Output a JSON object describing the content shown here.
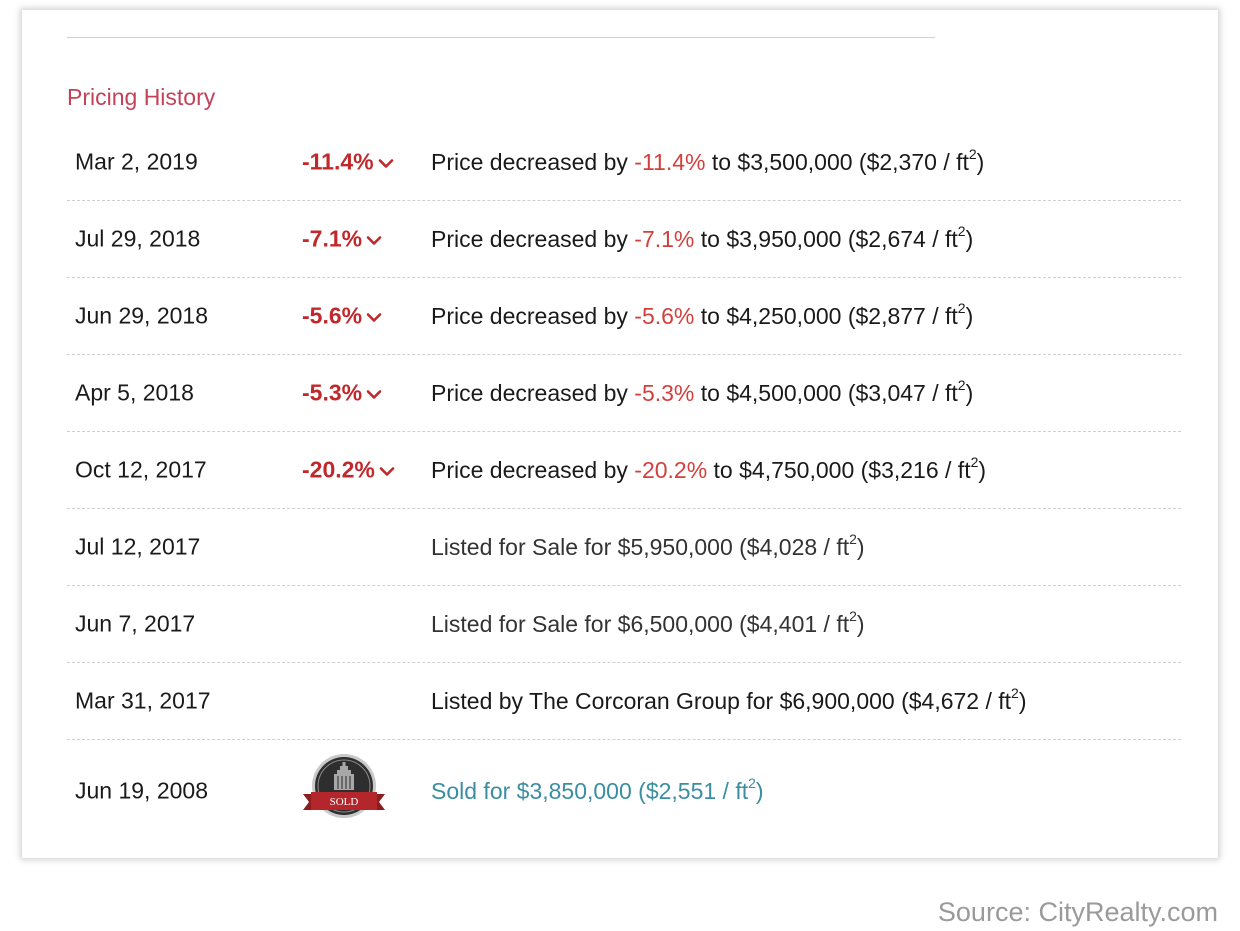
{
  "section": {
    "title": "Pricing History"
  },
  "rows": [
    {
      "date": "Mar 2, 2019",
      "change": "-11.4%",
      "desc_prefix": "Price decreased by ",
      "desc_pct": "-11.4%",
      "desc_suffix": " to $3,500,000 ($2,370 / ft",
      "unit_sup": "2",
      "desc_close": ")"
    },
    {
      "date": "Jul 29, 2018",
      "change": "-7.1%",
      "desc_prefix": "Price decreased by ",
      "desc_pct": "-7.1%",
      "desc_suffix": " to $3,950,000 ($2,674 / ft",
      "unit_sup": "2",
      "desc_close": ")"
    },
    {
      "date": "Jun 29, 2018",
      "change": "-5.6%",
      "desc_prefix": "Price decreased by ",
      "desc_pct": "-5.6%",
      "desc_suffix": " to $4,250,000 ($2,877 / ft",
      "unit_sup": "2",
      "desc_close": ")"
    },
    {
      "date": "Apr 5, 2018",
      "change": "-5.3%",
      "desc_prefix": "Price decreased by ",
      "desc_pct": "-5.3%",
      "desc_suffix": " to $4,500,000 ($3,047 / ft",
      "unit_sup": "2",
      "desc_close": ")"
    },
    {
      "date": "Oct 12, 2017",
      "change": "-20.2%",
      "desc_prefix": "Price decreased by ",
      "desc_pct": "-20.2%",
      "desc_suffix": " to $4,750,000 ($3,216 / ft",
      "unit_sup": "2",
      "desc_close": ")"
    },
    {
      "date": "Jul 12, 2017",
      "desc_main": "Listed for Sale for $5,950,000 ($4,028 / ft",
      "unit_sup": "2",
      "desc_close": ")"
    },
    {
      "date": "Jun 7, 2017",
      "desc_main": "Listed for Sale for $6,500,000 ($4,401 / ft",
      "unit_sup": "2",
      "desc_close": ")"
    },
    {
      "date": "Mar 31, 2017",
      "desc_main": "Listed by The Corcoran Group for $6,900,000 ($4,672 / ft",
      "unit_sup": "2",
      "desc_close": ")"
    },
    {
      "date": "Jun 19, 2008",
      "badge_label": "SOLD",
      "desc_main": "Sold for $3,850,000 ($2,551 / ft",
      "unit_sup": "2",
      "desc_close": ")"
    }
  ],
  "icons": {
    "change": "chevron-down-icon",
    "sold": "sold-badge-icon"
  },
  "colors": {
    "title": "#c2425a",
    "decrease": "#c0282c",
    "sold": "#3b8ea2",
    "badge_ribbon": "#b3262b"
  },
  "footer": {
    "source": "Source: CityRealty.com"
  }
}
